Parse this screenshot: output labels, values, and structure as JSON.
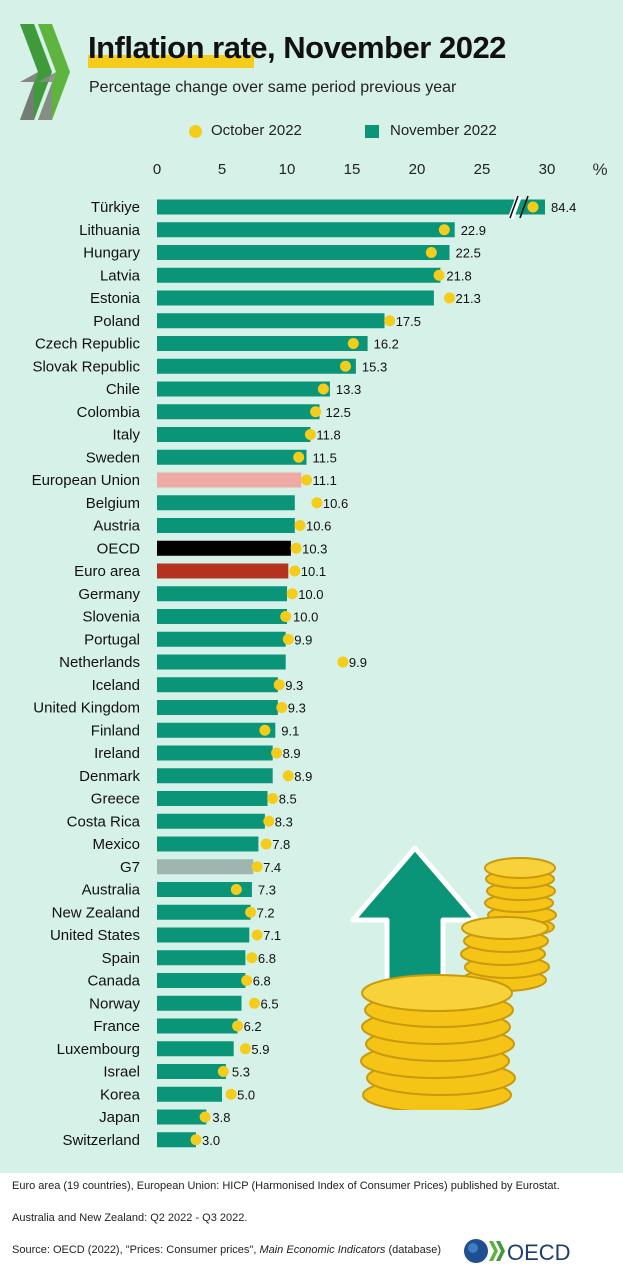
{
  "header": {
    "title": "Inflation rate, November 2022",
    "subtitle": "Percentage change over same period previous year"
  },
  "legend": {
    "october_label": "October 2022",
    "november_label": "November 2022"
  },
  "colors": {
    "background": "#d6f1e8",
    "bar": "#0a9478",
    "dot": "#f6cc1b",
    "european_union": "#f0aaa5",
    "oecd": "#000000",
    "euro_area": "#b4321e",
    "g7": "#9fb5b0"
  },
  "chart_data": {
    "type": "bar",
    "orientation": "horizontal",
    "title": "Inflation rate, November 2022",
    "subtitle": "Percentage change over same period previous year",
    "xlim": [
      0,
      30
    ],
    "x_ticks": [
      "0",
      "5",
      "10",
      "15",
      "20",
      "25",
      "30"
    ],
    "unit_label": "%",
    "axis_break": true,
    "legend_position": "top",
    "grid": false,
    "categories": [
      "Türkiye",
      "Lithuania",
      "Hungary",
      "Latvia",
      "Estonia",
      "Poland",
      "Czech Republic",
      "Slovak Republic",
      "Chile",
      "Colombia",
      "Italy",
      "Sweden",
      "European Union",
      "Belgium",
      "Austria",
      "OECD",
      "Euro area",
      "Germany",
      "Slovenia",
      "Portugal",
      "Netherlands",
      "Iceland",
      "United Kingdom",
      "Finland",
      "Ireland",
      "Denmark",
      "Greece",
      "Costa Rica",
      "Mexico",
      "G7",
      "Australia",
      "New Zealand",
      "United States",
      "Spain",
      "Canada",
      "Norway",
      "France",
      "Luxembourg",
      "Israel",
      "Korea",
      "Japan",
      "Switzerland"
    ],
    "series": [
      {
        "name": "November 2022",
        "values": [
          84.4,
          22.9,
          22.5,
          21.8,
          21.3,
          17.5,
          16.2,
          15.3,
          13.3,
          12.5,
          11.8,
          11.5,
          11.1,
          10.6,
          10.6,
          10.3,
          10.1,
          10.0,
          10.0,
          9.9,
          9.9,
          9.3,
          9.3,
          9.1,
          8.9,
          8.9,
          8.5,
          8.3,
          7.8,
          7.4,
          7.3,
          7.2,
          7.1,
          6.8,
          6.8,
          6.5,
          6.2,
          5.9,
          5.3,
          5.0,
          3.8,
          3.0
        ],
        "labels": [
          "84.4",
          "22.9",
          "22.5",
          "21.8",
          "21.3",
          "17.5",
          "16.2",
          "15.3",
          "13.3",
          "12.5",
          "11.8",
          "11.5",
          "11.1",
          "10.6",
          "10.6",
          "10.3",
          "10.1",
          "10.0",
          "10.0",
          "9.9",
          "9.9",
          "9.3",
          "9.3",
          "9.1",
          "8.9",
          "8.9",
          "8.5",
          "8.3",
          "7.8",
          "7.4",
          "7.3",
          "7.2",
          "7.1",
          "6.8",
          "6.8",
          "6.5",
          "6.2",
          "5.9",
          "5.3",
          "5.0",
          "3.8",
          "3.0"
        ]
      },
      {
        "name": "October 2022",
        "values": [
          85.5,
          22.1,
          21.1,
          21.7,
          22.5,
          17.9,
          15.1,
          14.5,
          12.8,
          12.2,
          11.8,
          10.9,
          11.5,
          12.3,
          11.0,
          10.7,
          10.6,
          10.4,
          9.9,
          10.1,
          14.3,
          9.4,
          9.6,
          8.3,
          9.2,
          10.1,
          8.9,
          8.6,
          8.4,
          7.7,
          6.1,
          7.2,
          7.7,
          7.3,
          6.9,
          7.5,
          6.2,
          6.8,
          5.1,
          5.7,
          3.7,
          3.0
        ]
      }
    ],
    "highlight_colors": {
      "European Union": "#f0aaa5",
      "OECD": "#000000",
      "Euro area": "#b4321e",
      "G7": "#9fb5b0"
    }
  },
  "footer": {
    "note1": "Euro area (19 countries), European Union: HICP (Harmonised Index of Consumer Prices) published by Eurostat.",
    "note2": "Australia and New Zealand: Q2 2022 - Q3 2022.",
    "source_prefix": "Source: OECD (2022), \"Prices: Consumer prices\", ",
    "source_italic": "Main Economic Indicators",
    "source_suffix": " (database)",
    "logo_text": "OECD"
  }
}
